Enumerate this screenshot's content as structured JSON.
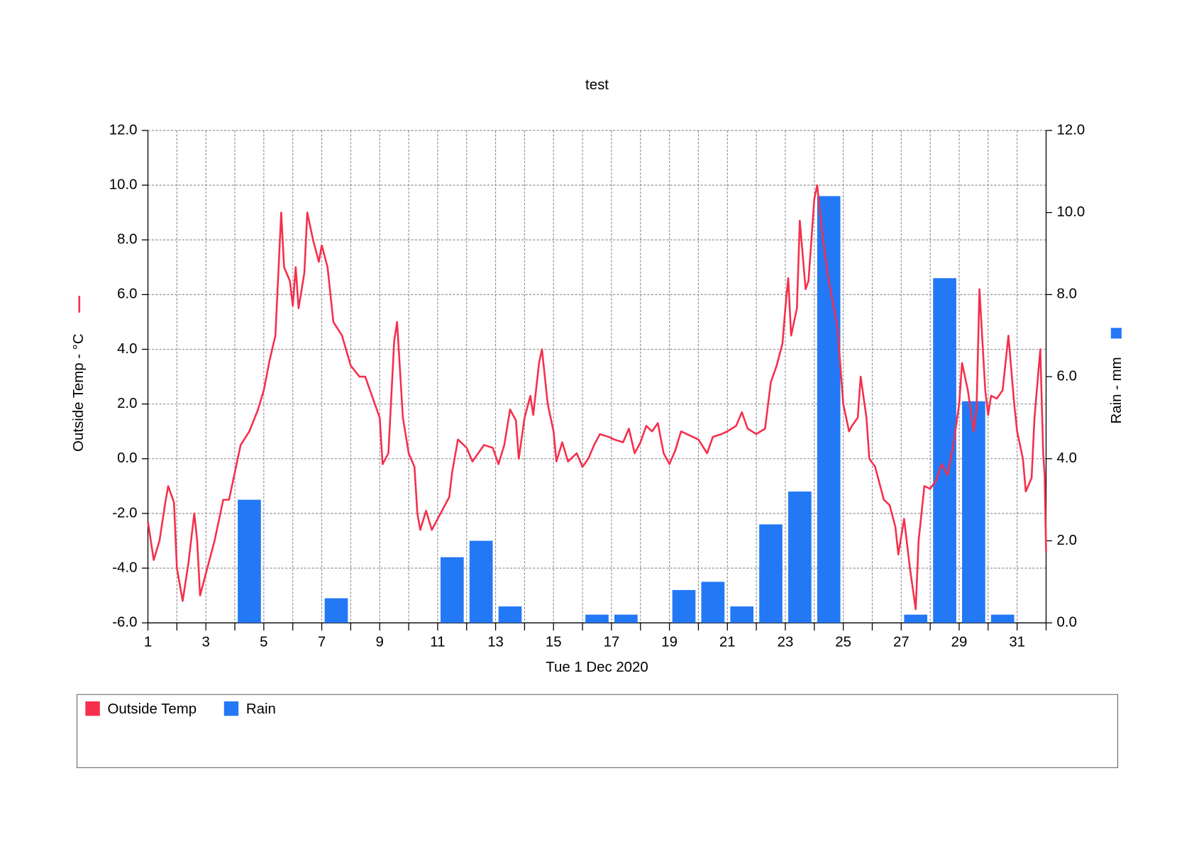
{
  "chart_data": {
    "type": "combo",
    "title": "test",
    "xlabel": "Tue 1 Dec 2020",
    "ylabel": "Outside Temp - °C",
    "y2label": "Rain - mm",
    "xlim": [
      1,
      32
    ],
    "xticks": [
      1,
      3,
      5,
      7,
      9,
      11,
      13,
      15,
      17,
      19,
      21,
      23,
      25,
      27,
      29,
      31
    ],
    "xminor_ticks": [
      2,
      4,
      6,
      8,
      10,
      12,
      14,
      16,
      18,
      20,
      22,
      24,
      26,
      28,
      30,
      32
    ],
    "ylim": [
      -6,
      12
    ],
    "yticks": [
      {
        "value": -6,
        "label": "-6.0"
      },
      {
        "value": -4,
        "label": "-4.0"
      },
      {
        "value": -2,
        "label": "-2.0"
      },
      {
        "value": 0,
        "label": "0.0"
      },
      {
        "value": 2,
        "label": "2.0"
      },
      {
        "value": 4,
        "label": "4.0"
      },
      {
        "value": 6,
        "label": "6.0"
      },
      {
        "value": 8,
        "label": "8.0"
      },
      {
        "value": 10,
        "label": "10.0"
      },
      {
        "value": 12,
        "label": "12.0"
      }
    ],
    "y2lim": [
      0,
      12
    ],
    "y2ticks": [
      {
        "value": 0,
        "label": "0.0"
      },
      {
        "value": 2,
        "label": "2.0"
      },
      {
        "value": 4,
        "label": "4.0"
      },
      {
        "value": 6,
        "label": "6.0"
      },
      {
        "value": 8,
        "label": "8.0"
      },
      {
        "value": 10,
        "label": "10.0"
      },
      {
        "value": 12,
        "label": "12.0"
      }
    ],
    "grid": true,
    "legend": "bottom",
    "series": [
      {
        "name": "Outside Temp",
        "type": "line",
        "color": "#f52f4c",
        "x": [
          1.0,
          1.2,
          1.4,
          1.6,
          1.7,
          1.9,
          2.0,
          2.2,
          2.4,
          2.6,
          2.7,
          2.8,
          3.0,
          3.3,
          3.6,
          3.8,
          4.0,
          4.2,
          4.5,
          4.8,
          5.0,
          5.2,
          5.4,
          5.6,
          5.7,
          5.9,
          6.0,
          6.1,
          6.2,
          6.4,
          6.5,
          6.7,
          6.9,
          7.0,
          7.2,
          7.4,
          7.7,
          8.0,
          8.3,
          8.5,
          8.7,
          9.0,
          9.1,
          9.3,
          9.5,
          9.6,
          9.8,
          10.0,
          10.2,
          10.3,
          10.4,
          10.6,
          10.8,
          11.0,
          11.2,
          11.4,
          11.5,
          11.7,
          12.0,
          12.2,
          12.4,
          12.6,
          12.9,
          13.1,
          13.3,
          13.5,
          13.7,
          13.8,
          14.0,
          14.2,
          14.3,
          14.5,
          14.6,
          14.8,
          15.0,
          15.1,
          15.3,
          15.5,
          15.8,
          16.0,
          16.2,
          16.4,
          16.6,
          16.9,
          17.1,
          17.4,
          17.6,
          17.8,
          18.0,
          18.2,
          18.4,
          18.6,
          18.8,
          19.0,
          19.2,
          19.4,
          19.6,
          20.0,
          20.3,
          20.5,
          20.8,
          21.0,
          21.3,
          21.5,
          21.7,
          22.0,
          22.3,
          22.5,
          22.7,
          22.9,
          23.0,
          23.1,
          23.2,
          23.4,
          23.5,
          23.7,
          23.8,
          24.0,
          24.1,
          24.3,
          24.5,
          24.8,
          25.0,
          25.2,
          25.3,
          25.5,
          25.6,
          25.8,
          25.9,
          26.1,
          26.4,
          26.6,
          26.8,
          26.9,
          27.1,
          27.3,
          27.5,
          27.6,
          27.8,
          28.0,
          28.2,
          28.4,
          28.6,
          28.8,
          29.0,
          29.1,
          29.3,
          29.5,
          29.6,
          29.7,
          29.9,
          30.0,
          30.1,
          30.3,
          30.5,
          30.7,
          30.9,
          31.0,
          31.2,
          31.3,
          31.5,
          31.6,
          31.8,
          31.9,
          31.95,
          32.0
        ],
        "values": [
          -2.3,
          -3.7,
          -3.0,
          -1.6,
          -1.0,
          -1.6,
          -4.0,
          -5.2,
          -3.8,
          -2.0,
          -3.0,
          -5.0,
          -4.2,
          -3.0,
          -1.5,
          -1.5,
          -0.5,
          0.5,
          1.0,
          1.8,
          2.5,
          3.6,
          4.5,
          9.0,
          7.0,
          6.5,
          5.6,
          7.0,
          5.5,
          6.8,
          9.0,
          8.0,
          7.2,
          7.8,
          7.0,
          5.0,
          4.5,
          3.4,
          3.0,
          3.0,
          2.4,
          1.5,
          -0.2,
          0.2,
          4.3,
          5.0,
          1.5,
          0.2,
          -0.3,
          -2.0,
          -2.6,
          -1.9,
          -2.6,
          -2.2,
          -1.8,
          -1.4,
          -0.5,
          0.7,
          0.4,
          -0.1,
          0.2,
          0.5,
          0.4,
          -0.2,
          0.5,
          1.8,
          1.4,
          0.0,
          1.5,
          2.3,
          1.6,
          3.5,
          4.0,
          2.0,
          1.0,
          -0.1,
          0.6,
          -0.1,
          0.2,
          -0.3,
          0.0,
          0.5,
          0.9,
          0.8,
          0.7,
          0.6,
          1.1,
          0.2,
          0.6,
          1.2,
          1.0,
          1.3,
          0.2,
          -0.2,
          0.3,
          1.0,
          0.9,
          0.7,
          0.2,
          0.8,
          0.9,
          1.0,
          1.2,
          1.7,
          1.1,
          0.9,
          1.1,
          2.8,
          3.4,
          4.2,
          5.5,
          6.6,
          4.5,
          5.5,
          8.7,
          6.2,
          6.5,
          9.5,
          10.0,
          8.0,
          6.5,
          4.8,
          2.0,
          1.0,
          1.2,
          1.5,
          3.0,
          1.5,
          0.0,
          -0.3,
          -1.5,
          -1.7,
          -2.5,
          -3.5,
          -2.2,
          -4.0,
          -5.5,
          -3.0,
          -1.0,
          -1.1,
          -0.8,
          -0.2,
          -0.6,
          0.5,
          2.0,
          3.5,
          2.5,
          1.0,
          1.8,
          6.2,
          2.5,
          1.6,
          2.3,
          2.2,
          2.5,
          4.5,
          2.0,
          1.0,
          0.0,
          -1.2,
          -0.7,
          1.5,
          4.0,
          0.2,
          -0.6,
          -3.4
        ]
      },
      {
        "name": "Rain",
        "type": "bar",
        "axis": "y2",
        "color": "#2378f5",
        "x": [
          4,
          7,
          11,
          12,
          13,
          16,
          17,
          19,
          20,
          21,
          22,
          23,
          24,
          27,
          28,
          29,
          30
        ],
        "values": [
          3.0,
          0.6,
          1.6,
          2.0,
          0.4,
          0.2,
          0.2,
          0.8,
          1.0,
          0.4,
          2.4,
          3.2,
          10.4,
          0.2,
          8.4,
          5.4,
          0.2
        ]
      }
    ]
  }
}
